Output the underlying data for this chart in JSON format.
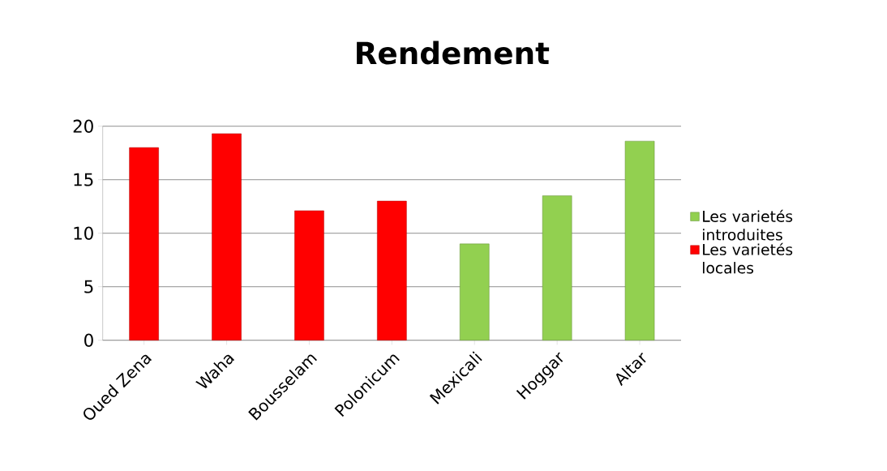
{
  "chart_data": {
    "type": "bar",
    "title": "Rendement",
    "categories": [
      "Oued Zena",
      "Waha",
      "Bousselam",
      "Polonicum",
      "Mexicali",
      "Hoggar",
      "Altar"
    ],
    "series": [
      {
        "name": "Les varietés introduites",
        "color": "#92d050",
        "values": [
          null,
          null,
          null,
          null,
          9.0,
          13.5,
          18.6
        ]
      },
      {
        "name": "Les varietés locales",
        "color": "#ff0000",
        "values": [
          18.0,
          19.3,
          12.1,
          13.0,
          null,
          null,
          null
        ]
      }
    ],
    "ylim": [
      0,
      20
    ],
    "yticks": [
      0,
      5,
      10,
      15,
      20
    ],
    "grid": "y",
    "legend": "right"
  }
}
